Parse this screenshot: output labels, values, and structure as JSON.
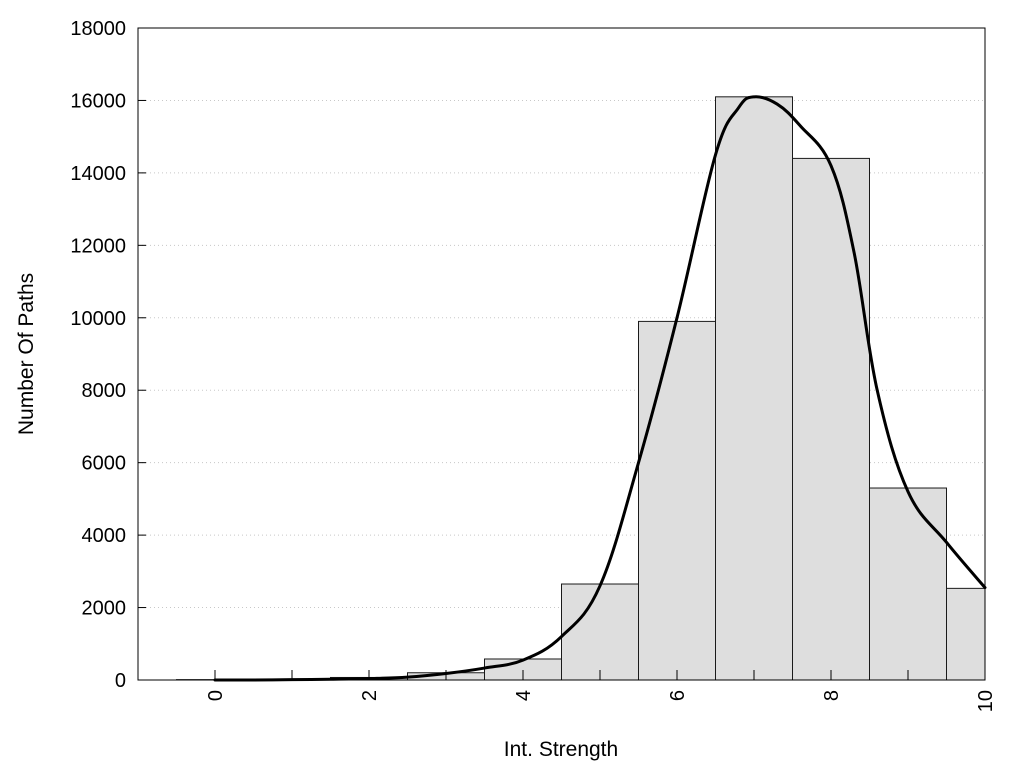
{
  "chart_data": {
    "type": "bar",
    "xlabel": "Int. Strength",
    "ylabel": "Number Of Paths",
    "xlim": [
      -1,
      10
    ],
    "ylim": [
      0,
      18000
    ],
    "x_ticks": [
      "0",
      "2",
      "4",
      "6",
      "8",
      "10"
    ],
    "y_ticks": [
      "0",
      "2000",
      "4000",
      "6000",
      "8000",
      "10000",
      "12000",
      "14000",
      "16000",
      "18000"
    ],
    "grid": "horizontal dotted",
    "bar_width": 1,
    "bars": {
      "x": [
        0,
        1,
        2,
        3,
        4,
        5,
        6,
        7,
        8,
        9,
        10
      ],
      "values": [
        10,
        25,
        70,
        200,
        580,
        2650,
        9900,
        16100,
        14400,
        5300,
        2530
      ]
    },
    "curve": {
      "type": "line",
      "x": [
        0,
        0.5,
        1,
        1.5,
        2,
        2.5,
        3,
        3.5,
        4,
        4.5,
        5,
        5.5,
        6,
        6.5,
        6.8,
        7,
        7.3,
        7.6,
        8,
        8.3,
        8.6,
        9,
        9.5,
        10
      ],
      "values": [
        0,
        0,
        10,
        20,
        40,
        80,
        180,
        330,
        550,
        1200,
        2600,
        6000,
        10000,
        14500,
        15800,
        16100,
        15900,
        15300,
        14200,
        11800,
        8000,
        5200,
        3800,
        2550
      ]
    },
    "colors": {
      "bar_fill": "#dedede",
      "bar_stroke": "#1a1a1a",
      "curve": "#000000",
      "grid": "#c8c8c8"
    }
  }
}
